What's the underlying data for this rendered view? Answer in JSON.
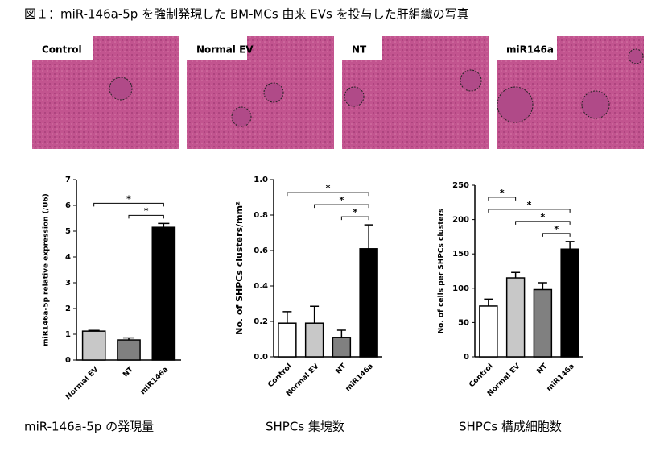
{
  "figure_title": "図１：miR-146a-5p を強制発現した BM-MCs 由来 EVs を投与した肝組織の写真",
  "panels": [
    "Control",
    "Normal EV",
    "NT",
    "miR146a"
  ],
  "chart_data": [
    {
      "type": "bar",
      "caption": "miR-146a-5p の発現量",
      "ylabel": "miR146a-5p relative expression (/U6)",
      "categories": [
        "Normal EV",
        "NT",
        "miR146a"
      ],
      "values": [
        1.12,
        0.78,
        5.15
      ],
      "errors": [
        0.03,
        0.08,
        0.15
      ],
      "colors": [
        "#c8c8c8",
        "#808080",
        "#000000"
      ],
      "ylim": [
        0,
        7
      ],
      "yticks": [
        0,
        1,
        2,
        3,
        4,
        5,
        6,
        7
      ],
      "significance": [
        {
          "from": 0,
          "to": 2,
          "label": "*"
        },
        {
          "from": 1,
          "to": 2,
          "label": "*"
        }
      ]
    },
    {
      "type": "bar",
      "caption": "SHPCs 集塊数",
      "ylabel": "No. of SHPCs clusters/mm²",
      "categories": [
        "Control",
        "Normal EV",
        "NT",
        "miR146a"
      ],
      "values": [
        0.19,
        0.19,
        0.11,
        0.61
      ],
      "errors": [
        0.065,
        0.095,
        0.04,
        0.135
      ],
      "colors": [
        "#ffffff",
        "#c8c8c8",
        "#808080",
        "#000000"
      ],
      "ylim": [
        0,
        1
      ],
      "yticks": [
        {
          "value": 0,
          "label": "0.0"
        },
        0.2,
        0.4,
        0.6,
        0.8,
        {
          "value": 1,
          "label": "1.0"
        }
      ],
      "significance": [
        {
          "from": 0,
          "to": 3,
          "label": "*"
        },
        {
          "from": 1,
          "to": 3,
          "label": "*"
        },
        {
          "from": 2,
          "to": 3,
          "label": "*"
        }
      ]
    },
    {
      "type": "bar",
      "caption": "SHPCs 構成細胞数",
      "ylabel": "No. of cells per SHPCs clusters",
      "categories": [
        "Control",
        "Normal EV",
        "NT",
        "miR146a"
      ],
      "values": [
        74,
        115,
        98,
        157
      ],
      "errors": [
        10,
        8,
        10,
        11
      ],
      "colors": [
        "#ffffff",
        "#c8c8c8",
        "#808080",
        "#000000"
      ],
      "ylim": [
        0,
        250
      ],
      "yticks": [
        0,
        50,
        100,
        150,
        200,
        250
      ],
      "significance": [
        {
          "from": 0,
          "to": 1,
          "label": "*"
        },
        {
          "from": 0,
          "to": 3,
          "label": "*"
        },
        {
          "from": 1,
          "to": 3,
          "label": "*"
        },
        {
          "from": 2,
          "to": 3,
          "label": "*"
        }
      ]
    }
  ]
}
